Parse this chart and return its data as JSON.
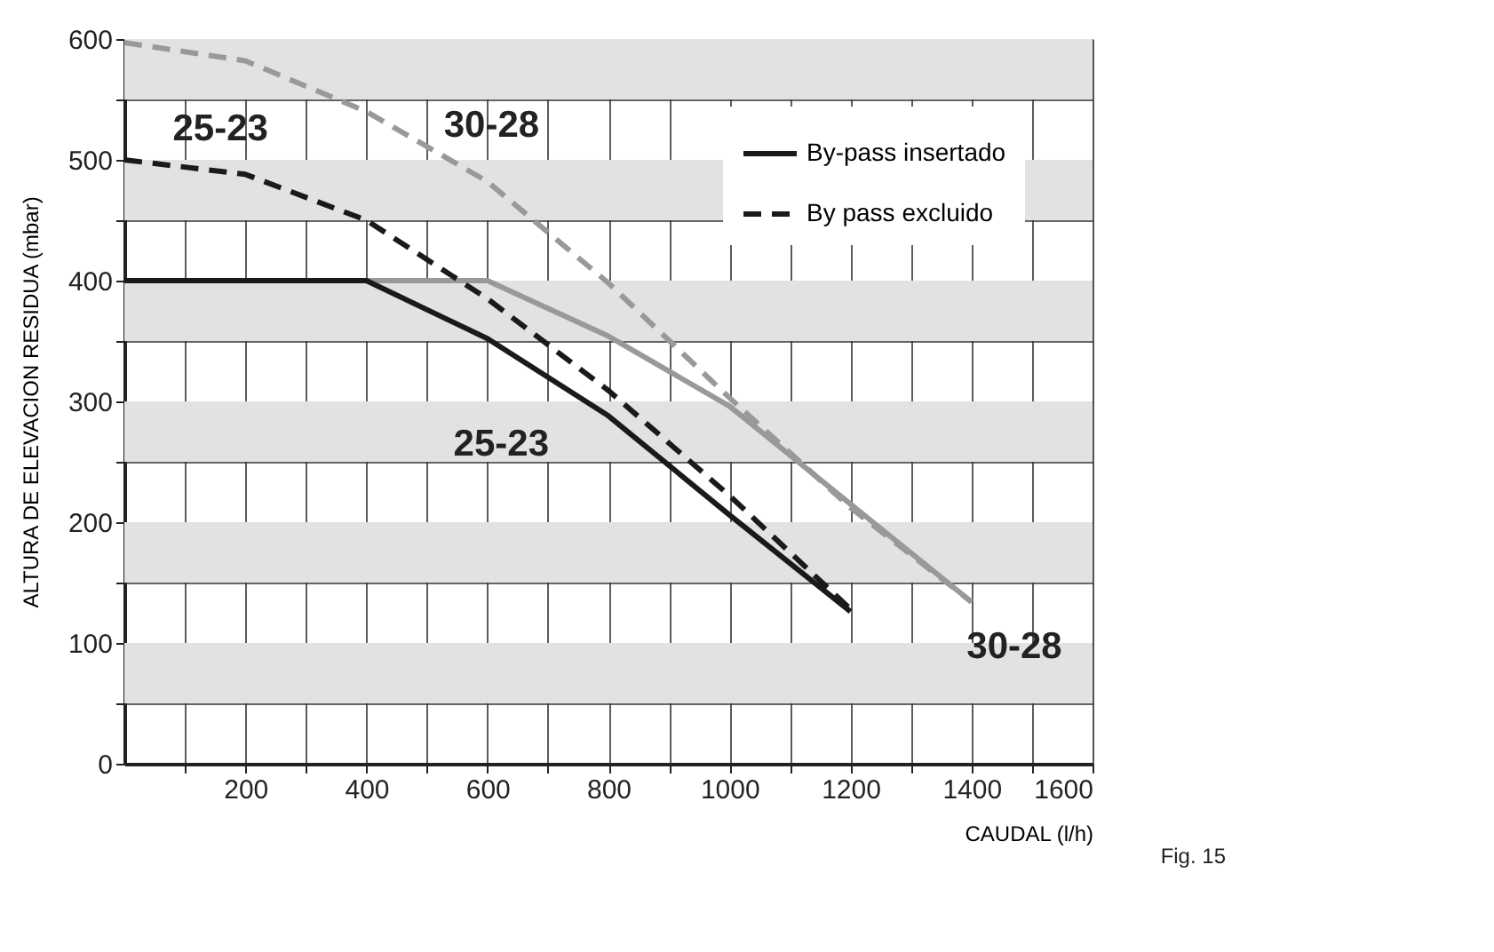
{
  "chart_data": {
    "type": "line",
    "xlabel": "CAUDAL (l/h)",
    "ylabel": "ALTURA DE ELEVACION RESIDUA (mbar)",
    "xlim": [
      0,
      1600
    ],
    "ylim": [
      0,
      600
    ],
    "xticks": [
      {
        "value": 100,
        "label": null
      },
      200,
      {
        "value": 300,
        "label": null
      },
      400,
      {
        "value": 500,
        "label": null
      },
      600,
      {
        "value": 700,
        "label": null
      },
      800,
      {
        "value": 900,
        "label": null
      },
      1000,
      {
        "value": 1100,
        "label": null
      },
      1200,
      {
        "value": 1300,
        "label": null
      },
      1400,
      {
        "value": 1500,
        "label": null
      },
      1600
    ],
    "yticks": [
      0,
      {
        "value": 50,
        "label": null
      },
      100,
      {
        "value": 150,
        "label": null
      },
      200,
      {
        "value": 250,
        "label": null
      },
      300,
      {
        "value": 350,
        "label": null
      },
      400,
      {
        "value": 450,
        "label": null
      },
      500,
      {
        "value": 550,
        "label": null
      },
      600
    ],
    "grid": true,
    "legend": "top right",
    "marker": "none",
    "bands": [
      {
        "axis": "y",
        "from": 550,
        "to": 600,
        "color": "#e2e2e4"
      },
      {
        "axis": "y",
        "from": 450,
        "to": 500,
        "color": "#e2e2e4"
      },
      {
        "axis": "y",
        "from": 350,
        "to": 400,
        "color": "#e2e2e4"
      },
      {
        "axis": "y",
        "from": 250,
        "to": 300,
        "color": "#e2e2e4"
      },
      {
        "axis": "y",
        "from": 150,
        "to": 200,
        "color": "#e2e2e4"
      },
      {
        "axis": "y",
        "from": 50,
        "to": 100,
        "color": "#e2e2e4"
      }
    ],
    "series": [
      {
        "color": "#999999",
        "line_style": "dashed",
        "x": [
          0,
          200,
          400,
          600,
          800,
          1000,
          1200,
          1400
        ],
        "values": [
          597,
          582,
          540,
          482,
          398,
          303,
          212,
          134
        ]
      },
      {
        "color": "#999999",
        "line_style": "solid",
        "x": [
          0,
          600,
          800,
          1000,
          1200,
          1400
        ],
        "values": [
          400,
          400,
          354,
          296,
          215,
          134
        ]
      },
      {
        "name": "By-pass insertado",
        "color": "#1a1a1a",
        "line_style": "solid",
        "x": [
          0,
          400,
          600,
          800,
          1000,
          1200
        ],
        "values": [
          400,
          400,
          352,
          288,
          206,
          126
        ]
      },
      {
        "name": "By pass excluido",
        "color": "#1a1a1a",
        "line_style": "dashed",
        "x": [
          0,
          200,
          400,
          600,
          800,
          1000,
          1200
        ],
        "values": [
          500,
          488,
          450,
          385,
          309,
          222,
          128
        ]
      }
    ],
    "annotations": [
      "25-23",
      "30-28",
      "25-23",
      "30-28",
      "Fig. 15"
    ]
  }
}
